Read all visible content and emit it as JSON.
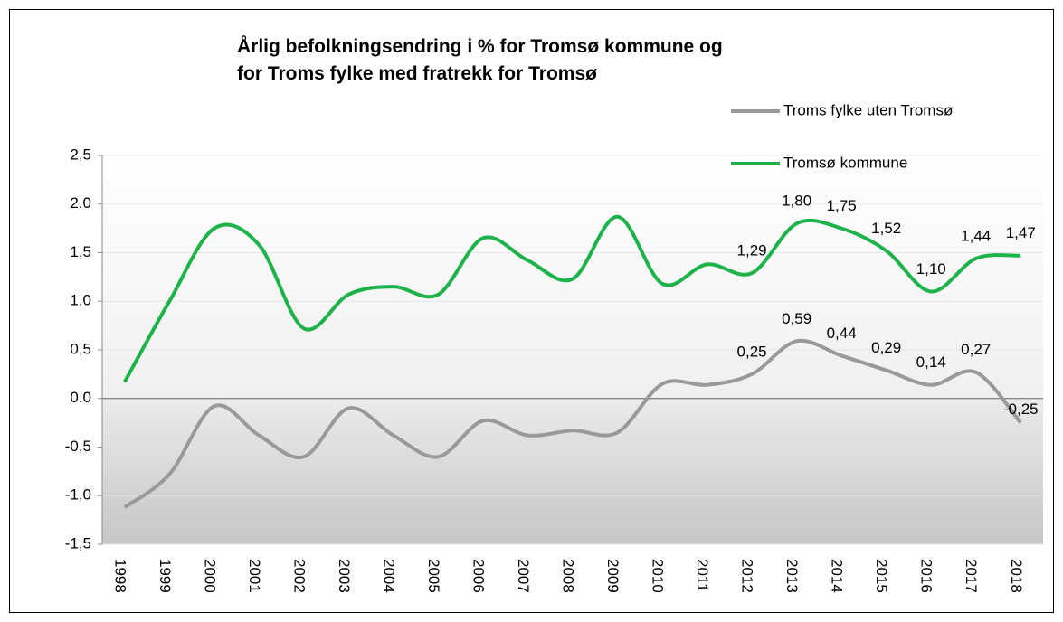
{
  "chart_data": {
    "type": "line",
    "title": [
      "Årlig befolkningsendring  i % for Tromsø kommune og",
      "for Troms fylke med fratrekk for Tromsø"
    ],
    "categories": [
      "1998",
      "1999",
      "2000",
      "2001",
      "2002",
      "2003",
      "2004",
      "2005",
      "2006",
      "2007",
      "2008",
      "2009",
      "2010",
      "2011",
      "2012",
      "2013",
      "2014",
      "2015",
      "2016",
      "2017",
      "2018"
    ],
    "series": [
      {
        "name": "Troms fylke uten Tromsø",
        "color": "#999999",
        "values": [
          -1.12,
          -0.78,
          -0.08,
          -0.38,
          -0.6,
          -0.1,
          -0.38,
          -0.6,
          -0.23,
          -0.38,
          -0.33,
          -0.35,
          0.15,
          0.14,
          0.25,
          0.59,
          0.44,
          0.29,
          0.14,
          0.27,
          -0.25
        ],
        "value_labels": [
          null,
          null,
          null,
          null,
          null,
          null,
          null,
          null,
          null,
          null,
          null,
          null,
          null,
          null,
          "0,25",
          "0,59",
          "0,44",
          "0,29",
          "0,14",
          "0,27",
          "-0,25"
        ]
      },
      {
        "name": "Tromsø kommune",
        "color": "#1db34a",
        "values": [
          0.17,
          1.0,
          1.75,
          1.58,
          0.72,
          1.07,
          1.15,
          1.07,
          1.65,
          1.42,
          1.23,
          1.87,
          1.18,
          1.38,
          1.29,
          1.8,
          1.75,
          1.52,
          1.1,
          1.44,
          1.47
        ],
        "value_labels": [
          null,
          null,
          null,
          null,
          null,
          null,
          null,
          null,
          null,
          null,
          null,
          null,
          null,
          null,
          "1,29",
          "1,80",
          "1,75",
          "1,52",
          "1,10",
          "1,44",
          "1,47"
        ]
      }
    ],
    "ylim": [
      -1.5,
      2.5
    ],
    "yticks": [
      {
        "value": -1.5,
        "label": "-1,5"
      },
      {
        "value": -1,
        "label": "-1,0"
      },
      {
        "value": -0.5,
        "label": "-0,5"
      },
      {
        "value": 0,
        "label": "0.0"
      },
      {
        "value": 0.5,
        "label": "0,5"
      },
      {
        "value": 1,
        "label": "1,0"
      },
      {
        "value": 1.5,
        "label": "1,5"
      },
      {
        "value": 2,
        "label": "2.0"
      },
      {
        "value": 2.5,
        "label": "2,5"
      }
    ],
    "grid": true,
    "legend": "top-right"
  }
}
